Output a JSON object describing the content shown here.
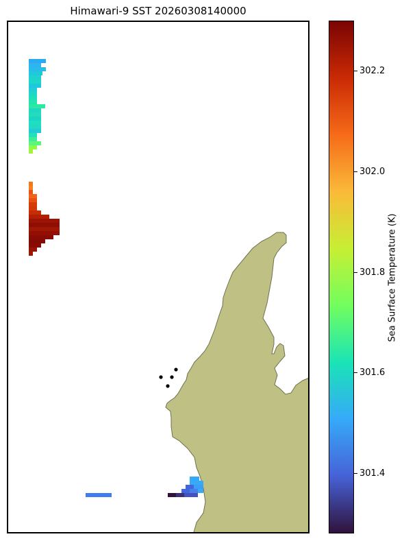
{
  "title": "Himawari-9 SST 20260308140000",
  "colorbar": {
    "label": "Sea Surface Temperature (K)",
    "min": 301.28,
    "max": 302.3,
    "ticks": [
      "301.4",
      "301.6",
      "301.8",
      "302.0",
      "302.2"
    ],
    "colormap": "turbo",
    "colors": [
      "#30123b",
      "#4662d7",
      "#36aaf9",
      "#1ae4b6",
      "#72fe5e",
      "#c7ef34",
      "#faba39",
      "#f66b19",
      "#ca2a04",
      "#7a0403"
    ]
  },
  "map": {
    "land_color": "#bfc184",
    "land_edge": "#6f6f4f",
    "station_points": 4
  }
}
